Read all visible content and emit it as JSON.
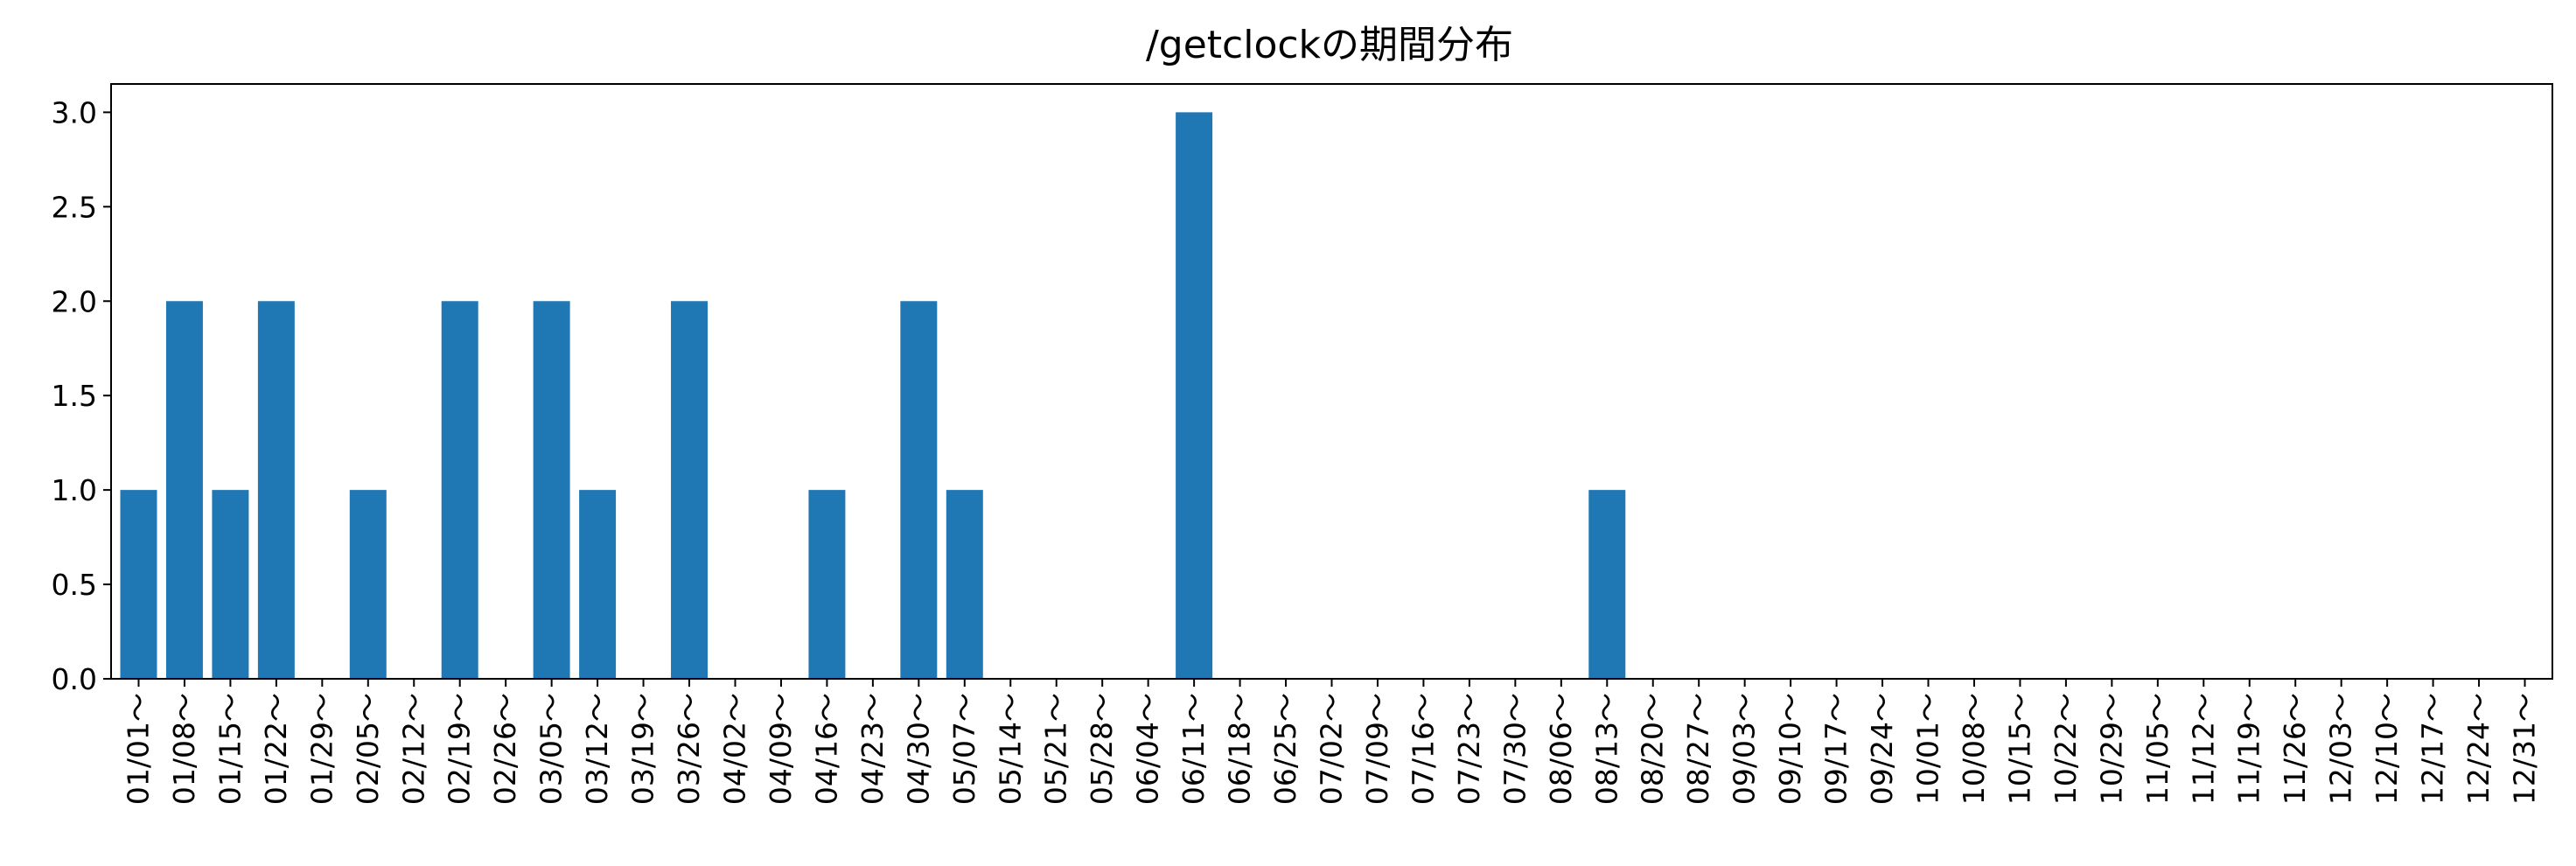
{
  "chart_data": {
    "type": "bar",
    "title": "/getclockの期間分布",
    "xlabel": "",
    "ylabel": "",
    "ylim": [
      0,
      3.15
    ],
    "yticks": [
      "0.0",
      "0.5",
      "1.0",
      "1.5",
      "2.0",
      "2.5",
      "3.0"
    ],
    "ytick_values": [
      0,
      0.5,
      1.0,
      1.5,
      2.0,
      2.5,
      3.0
    ],
    "grid": false,
    "bar_color": "#1f77b4",
    "categories": [
      "01/01～",
      "01/08～",
      "01/15～",
      "01/22～",
      "01/29～",
      "02/05～",
      "02/12～",
      "02/19～",
      "02/26～",
      "03/05～",
      "03/12～",
      "03/19～",
      "03/26～",
      "04/02～",
      "04/09～",
      "04/16～",
      "04/23～",
      "04/30～",
      "05/07～",
      "05/14～",
      "05/21～",
      "05/28～",
      "06/04～",
      "06/11～",
      "06/18～",
      "06/25～",
      "07/02～",
      "07/09～",
      "07/16～",
      "07/23～",
      "07/30～",
      "08/06～",
      "08/13～",
      "08/20～",
      "08/27～",
      "09/03～",
      "09/10～",
      "09/17～",
      "09/24～",
      "10/01～",
      "10/08～",
      "10/15～",
      "10/22～",
      "10/29～",
      "11/05～",
      "11/12～",
      "11/19～",
      "11/26～",
      "12/03～",
      "12/10～",
      "12/17～",
      "12/24～",
      "12/31～"
    ],
    "values": [
      1,
      2,
      1,
      2,
      0,
      1,
      0,
      2,
      0,
      2,
      1,
      0,
      2,
      0,
      0,
      1,
      0,
      2,
      1,
      0,
      0,
      0,
      0,
      3,
      0,
      0,
      0,
      0,
      0,
      0,
      0,
      0,
      1,
      0,
      0,
      0,
      0,
      0,
      0,
      0,
      0,
      0,
      0,
      0,
      0,
      0,
      0,
      0,
      0,
      0,
      0,
      0,
      0
    ]
  }
}
